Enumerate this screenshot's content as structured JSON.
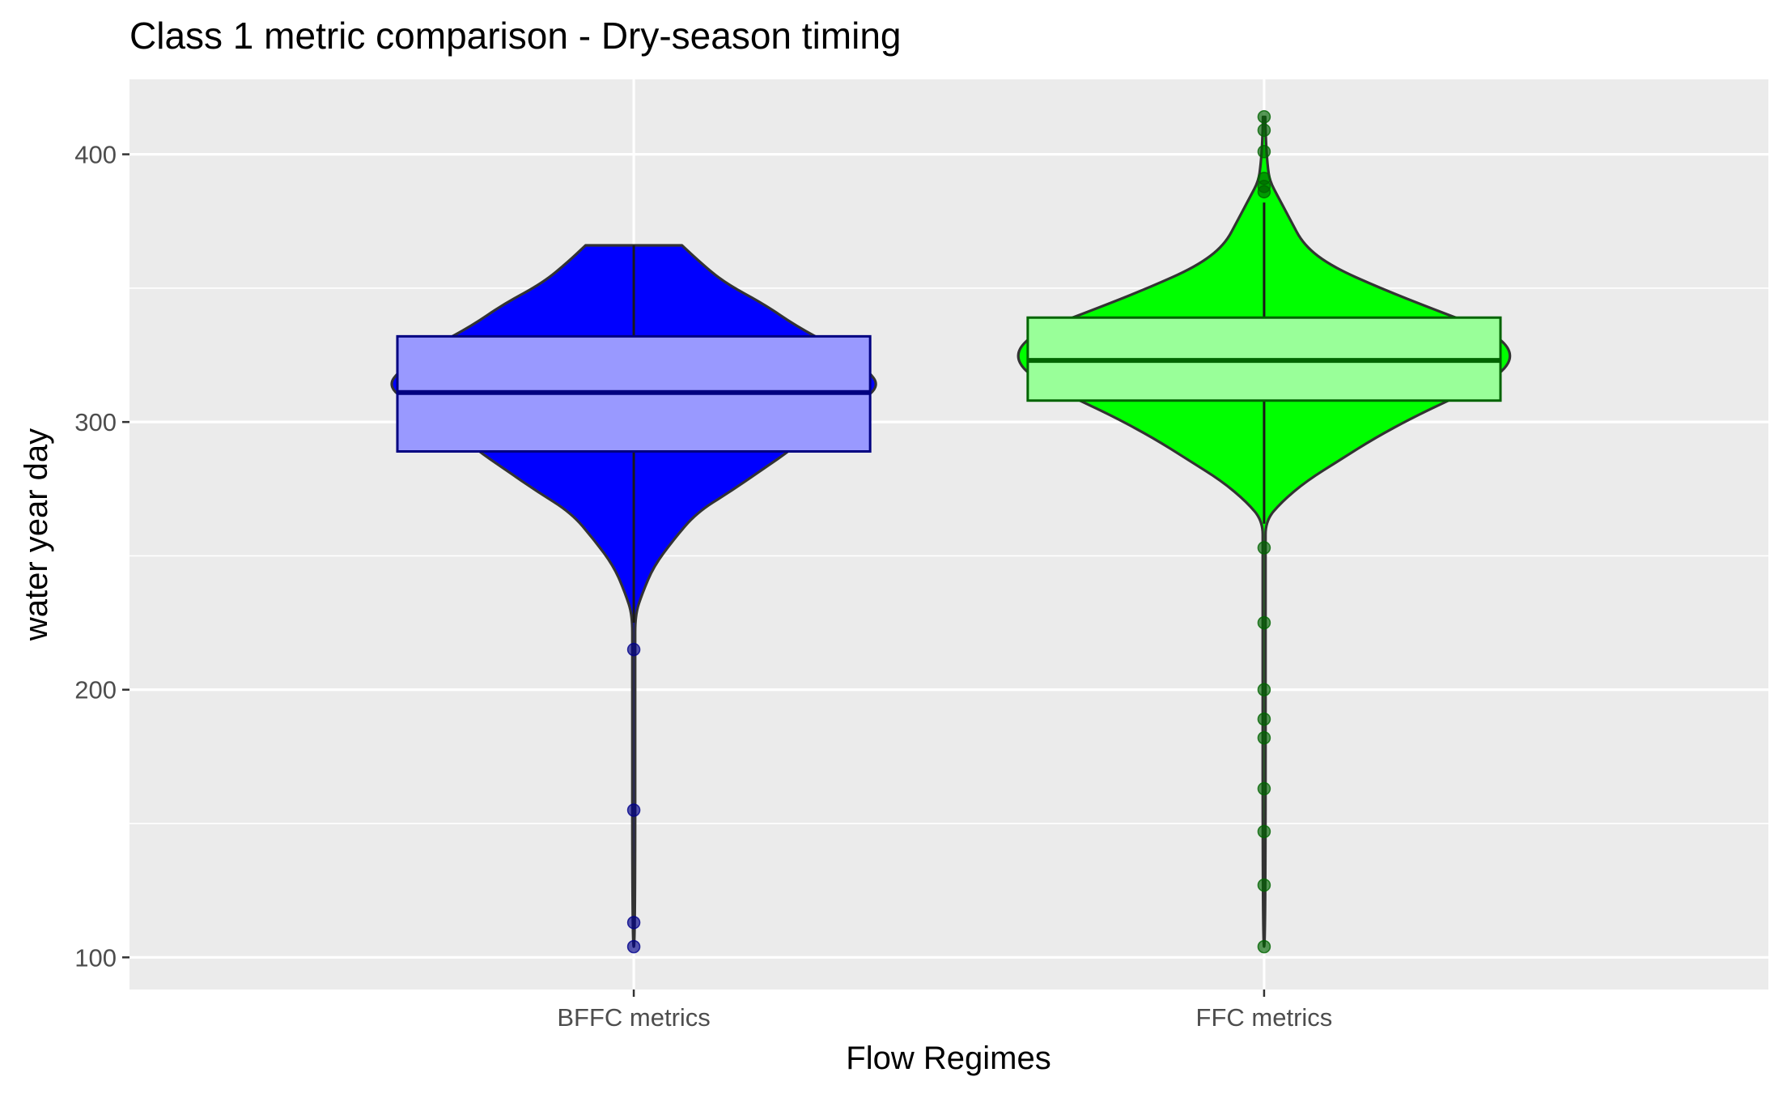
{
  "chart_data": {
    "type": "violin",
    "title": "Class 1 metric comparison - Dry-season timing",
    "xlabel": "Flow Regimes",
    "ylabel": "water year day",
    "categories": [
      "BFFC metrics",
      "FFC metrics"
    ],
    "ylim": [
      88,
      428
    ],
    "yticks": [
      100,
      200,
      300,
      400
    ],
    "ytick_labels": [
      "100",
      "200",
      "300",
      "400"
    ],
    "grid": true,
    "legend": "none",
    "series": [
      {
        "category": "BFFC metrics",
        "fill": "#0000ff",
        "box_fill": "#9999ff",
        "box_stroke": "#000080",
        "point_color": "#00008b",
        "min": 104,
        "q1": 289,
        "median": 311,
        "q3": 332,
        "whisker_low": 225,
        "whisker_high": 366,
        "max": 366,
        "outliers": [
          215,
          155,
          113,
          104
        ],
        "density": [
          [
            366,
            0.17
          ],
          [
            360,
            0.23
          ],
          [
            352,
            0.32
          ],
          [
            344,
            0.46
          ],
          [
            336,
            0.57
          ],
          [
            328,
            0.71
          ],
          [
            320,
            0.82
          ],
          [
            313,
            0.87
          ],
          [
            306,
            0.77
          ],
          [
            298,
            0.64
          ],
          [
            290,
            0.56
          ],
          [
            282,
            0.45
          ],
          [
            274,
            0.34
          ],
          [
            266,
            0.22
          ],
          [
            256,
            0.14
          ],
          [
            246,
            0.07
          ],
          [
            236,
            0.03
          ],
          [
            228,
            0.005
          ],
          [
            215,
            0.005
          ],
          [
            104,
            0.005
          ]
        ]
      },
      {
        "category": "FFC metrics",
        "fill": "#00ff00",
        "box_fill": "#99ff99",
        "box_stroke": "#006400",
        "point_color": "#006400",
        "min": 104,
        "q1": 308,
        "median": 323,
        "q3": 339,
        "whisker_low": 262,
        "whisker_high": 382,
        "max": 414,
        "outliers": [
          414,
          409,
          401,
          391,
          388,
          386,
          253,
          225,
          200,
          189,
          182,
          163,
          147,
          127,
          104
        ],
        "density": [
          [
            414,
            0.004
          ],
          [
            405,
            0.006
          ],
          [
            396,
            0.012
          ],
          [
            390,
            0.02
          ],
          [
            384,
            0.05
          ],
          [
            376,
            0.09
          ],
          [
            366,
            0.14
          ],
          [
            358,
            0.24
          ],
          [
            350,
            0.41
          ],
          [
            342,
            0.6
          ],
          [
            334,
            0.8
          ],
          [
            326,
            0.88
          ],
          [
            318,
            0.84
          ],
          [
            310,
            0.69
          ],
          [
            302,
            0.53
          ],
          [
            294,
            0.39
          ],
          [
            286,
            0.27
          ],
          [
            278,
            0.15
          ],
          [
            270,
            0.06
          ],
          [
            263,
            0.005
          ],
          [
            253,
            0.005
          ],
          [
            104,
            0.005
          ]
        ]
      }
    ]
  }
}
